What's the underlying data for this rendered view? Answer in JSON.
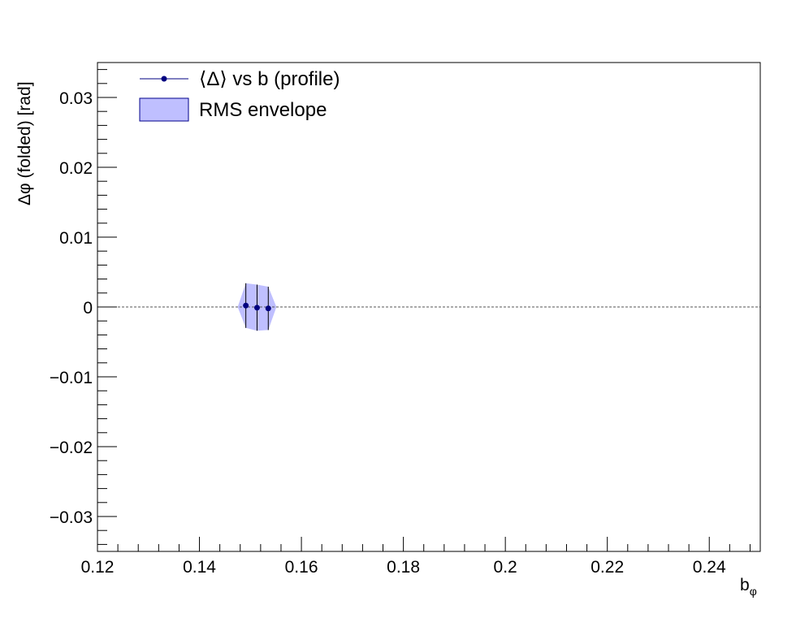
{
  "chart_data": {
    "type": "scatter",
    "xlabel": "b",
    "xlabel_sub": "φ",
    "ylabel": "Δφ (folded) [rad]",
    "xlim": [
      0.12,
      0.25
    ],
    "ylim": [
      -0.035,
      0.035
    ],
    "x_ticks": [
      0.12,
      0.14,
      0.16,
      0.18,
      0.2,
      0.22,
      0.24
    ],
    "x_tick_labels": [
      "0.12",
      "0.14",
      "0.16",
      "0.18",
      "0.2",
      "0.22",
      "0.24"
    ],
    "y_ticks": [
      -0.03,
      -0.02,
      -0.01,
      0,
      0.01,
      0.02,
      0.03
    ],
    "y_tick_labels": [
      "−0.03",
      "−0.02",
      "−0.01",
      "0",
      "0.01",
      "0.02",
      "0.03"
    ],
    "reference_line_y": 0,
    "legend_position": "top-left",
    "series": [
      {
        "name": "⟨Δ⟩ vs b  (profile)",
        "kind": "points-with-errors",
        "color": "#000080",
        "points": [
          {
            "x": 0.1491,
            "y": 0.0002,
            "err": 0.0032
          },
          {
            "x": 0.1513,
            "y": -0.0001,
            "err": 0.0033
          },
          {
            "x": 0.1535,
            "y": -0.0002,
            "err": 0.0031
          }
        ]
      },
      {
        "name": "RMS envelope",
        "kind": "band",
        "fill": "#bfbfff",
        "stroke": "#00008b",
        "x": [
          0.1475,
          0.1491,
          0.1513,
          0.1535,
          0.1551
        ],
        "lower": [
          0.0,
          -0.003,
          -0.0034,
          -0.0033,
          0.0
        ],
        "upper": [
          0.0,
          0.0034,
          0.0032,
          0.0029,
          0.0
        ]
      }
    ]
  }
}
